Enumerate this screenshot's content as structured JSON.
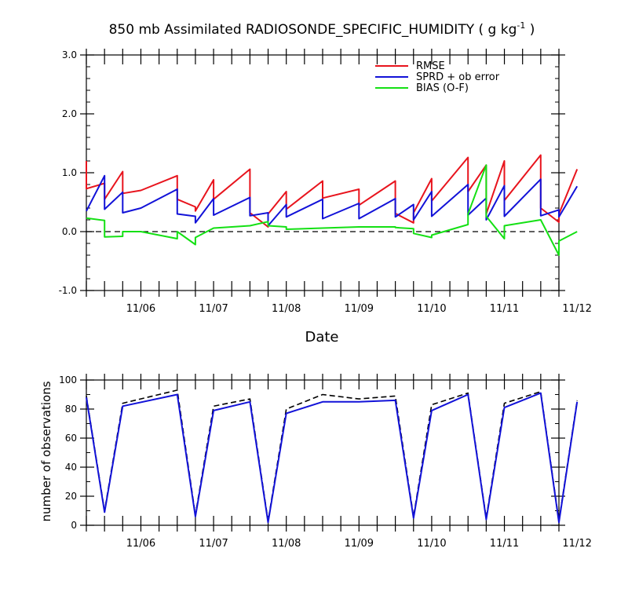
{
  "chart_data": [
    {
      "type": "line",
      "title_main": "850 mb Assimilated RADIOSONDE_SPECIFIC_HUMIDITY ( g kg",
      "title_sup": "-1",
      "title_end": " )",
      "xlabel": "Date",
      "ylabel": "",
      "ylim": [
        -1.0,
        3.0
      ],
      "xlim": [
        -0.75,
        5.75
      ],
      "y_ticks": [
        -1.0,
        0.0,
        1.0,
        2.0,
        3.0
      ],
      "y_tick_labels": [
        "-1.0",
        "0.0",
        "1.0",
        "2.0",
        "3.0"
      ],
      "x_ticks": [
        0,
        1,
        2,
        3,
        4,
        5,
        6
      ],
      "x_tick_labels": [
        "11/06",
        "11/07",
        "11/08",
        "11/09",
        "11/10",
        "11/11",
        "11/12"
      ],
      "reference_line": 0.0,
      "legend": {
        "placement": "top-right",
        "entries": [
          {
            "label": "RMSE",
            "color": "#e8141d"
          },
          {
            "label": "SPRD + ob error",
            "color": "#1212d8"
          },
          {
            "label": "BIAS (O-F)",
            "color": "#14e014"
          }
        ]
      },
      "series": [
        {
          "name": "RMSE",
          "color": "#e8141d",
          "x": [
            -0.75,
            -0.75,
            -0.5,
            -0.5,
            -0.25,
            -0.25,
            0,
            0,
            0.5,
            0.5,
            0.75,
            0.75,
            1,
            1,
            1.5,
            1.5,
            1.75,
            1.75,
            2,
            2,
            2.5,
            2.5,
            3,
            3,
            3.5,
            3.5,
            3.75,
            3.75,
            4,
            4,
            4.5,
            4.5,
            4.75,
            4.75,
            5,
            5,
            5.5,
            5.5,
            5.75,
            5.75,
            6
          ],
          "y": [
            1.2,
            0.73,
            0.82,
            0.55,
            1.02,
            0.65,
            0.7,
            0.7,
            0.95,
            0.55,
            0.42,
            0.35,
            0.88,
            0.55,
            1.06,
            0.32,
            0.08,
            0.3,
            0.68,
            0.38,
            0.86,
            0.57,
            0.72,
            0.45,
            0.86,
            0.31,
            0.15,
            0.32,
            0.9,
            0.52,
            1.26,
            0.68,
            1.13,
            0.3,
            1.2,
            0.53,
            1.3,
            0.4,
            0.16,
            0.3,
            1.06
          ]
        },
        {
          "name": "SPRD + ob error",
          "color": "#1212d8",
          "x": [
            -0.75,
            -0.5,
            -0.5,
            -0.25,
            -0.25,
            0,
            0,
            0.5,
            0.5,
            0.75,
            0.75,
            1,
            1,
            1.5,
            1.5,
            1.75,
            1.75,
            2,
            2,
            2.5,
            2.5,
            3,
            3,
            3.5,
            3.5,
            3.75,
            3.75,
            4,
            4,
            4.5,
            4.5,
            4.75,
            4.75,
            5,
            5,
            5.5,
            5.5,
            5.75,
            5.75,
            6
          ],
          "y": [
            0.35,
            0.95,
            0.38,
            0.67,
            0.32,
            0.4,
            0.4,
            0.72,
            0.3,
            0.26,
            0.15,
            0.56,
            0.28,
            0.58,
            0.27,
            0.32,
            0.1,
            0.46,
            0.25,
            0.55,
            0.22,
            0.48,
            0.22,
            0.56,
            0.25,
            0.46,
            0.2,
            0.68,
            0.26,
            0.8,
            0.28,
            0.57,
            0.2,
            0.78,
            0.26,
            0.89,
            0.27,
            0.37,
            0.25,
            0.77
          ]
        },
        {
          "name": "BIAS (O-F)",
          "color": "#14e014",
          "x": [
            -0.75,
            -0.5,
            -0.5,
            -0.25,
            -0.25,
            0,
            0,
            0.5,
            0.5,
            0.75,
            0.75,
            1,
            1,
            1.5,
            1.5,
            1.75,
            1.75,
            2,
            2,
            2.5,
            2.5,
            3,
            3,
            3.5,
            3.5,
            3.75,
            3.75,
            4,
            4,
            4.5,
            4.5,
            4.75,
            4.75,
            5,
            5,
            5.5,
            5.5,
            5.75,
            5.75,
            6
          ],
          "y": [
            0.23,
            0.19,
            -0.09,
            -0.08,
            0.0,
            0.0,
            0.0,
            -0.12,
            0.0,
            -0.22,
            -0.1,
            0.06,
            0.06,
            0.1,
            0.1,
            0.17,
            0.1,
            0.08,
            0.04,
            0.06,
            0.06,
            0.08,
            0.08,
            0.08,
            0.07,
            0.05,
            -0.03,
            -0.1,
            -0.06,
            0.12,
            0.3,
            1.13,
            0.26,
            -0.12,
            0.1,
            0.2,
            0.2,
            -0.4,
            -0.16,
            0.0
          ]
        }
      ]
    },
    {
      "type": "line",
      "title": "",
      "xlabel": "",
      "ylabel": "number of observations",
      "ylim": [
        0,
        100
      ],
      "xlim": [
        -0.75,
        5.75
      ],
      "y_ticks": [
        0,
        20,
        40,
        60,
        80,
        100
      ],
      "y_tick_labels": [
        "0",
        "20",
        "40",
        "60",
        "80",
        "100"
      ],
      "x_ticks": [
        0,
        1,
        2,
        3,
        4,
        5,
        6
      ],
      "x_tick_labels": [
        "11/06",
        "11/07",
        "11/08",
        "11/09",
        "11/10",
        "11/11",
        "11/12"
      ],
      "series": [
        {
          "style": "dashed",
          "color": "#000000",
          "x": [
            -0.75,
            -0.5,
            -0.25,
            0.5,
            0.75,
            1,
            1.5,
            1.75,
            2,
            2.5,
            3,
            3.5,
            3.75,
            4,
            4.5,
            4.75,
            5,
            5.5,
            5.75,
            6
          ],
          "y": [
            89,
            10,
            84,
            93,
            7,
            82,
            87,
            3,
            80,
            90,
            87,
            89,
            6,
            83,
            91,
            5,
            84,
            92,
            3,
            86
          ]
        },
        {
          "style": "solid",
          "color": "#1212d8",
          "x": [
            -0.75,
            -0.5,
            -0.25,
            0.5,
            0.75,
            1,
            1.5,
            1.75,
            2,
            2.5,
            3,
            3.5,
            3.75,
            4,
            4.5,
            4.75,
            5,
            5.5,
            5.75,
            6
          ],
          "y": [
            88,
            9,
            82,
            90,
            6,
            79,
            85,
            2,
            77,
            85,
            85,
            86,
            5,
            79,
            90,
            4,
            81,
            91,
            2,
            85
          ]
        }
      ]
    }
  ]
}
